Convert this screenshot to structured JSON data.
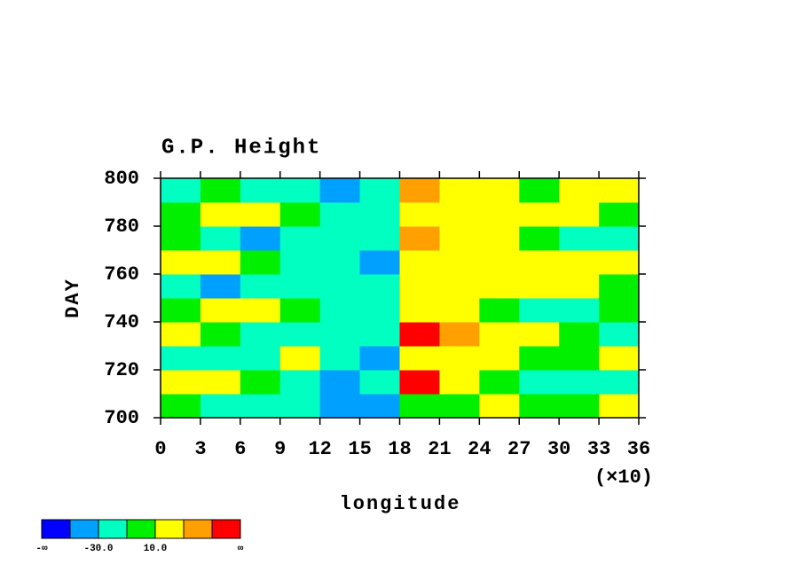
{
  "chart_data": {
    "type": "contour",
    "title": "G.P. Height",
    "x_label": "longitude",
    "x_scale_label": "(×10)",
    "y_label": "DAY",
    "xlim": [
      0,
      360
    ],
    "ylim": [
      700,
      800
    ],
    "xticks": [
      0,
      {
        "value": 30,
        "label": "3"
      },
      {
        "value": 60,
        "label": "6"
      },
      {
        "value": 90,
        "label": "9"
      },
      {
        "value": 120,
        "label": "12"
      },
      {
        "value": 150,
        "label": "15"
      },
      {
        "value": 180,
        "label": "18"
      },
      {
        "value": 210,
        "label": "21"
      },
      {
        "value": 240,
        "label": "24"
      },
      {
        "value": 270,
        "label": "27"
      },
      {
        "value": 300,
        "label": "30"
      },
      {
        "value": 330,
        "label": "33"
      },
      {
        "value": 360,
        "label": "36"
      }
    ],
    "yticks": [
      700,
      720,
      740,
      760,
      780,
      800
    ],
    "x": [
      15,
      45,
      75,
      105,
      135,
      165,
      195,
      225,
      255,
      285,
      315,
      345
    ],
    "y": [
      705,
      715,
      725,
      735,
      745,
      755,
      765,
      775,
      785,
      795
    ],
    "z": [
      [
        0,
        -20,
        -20,
        -15,
        -35,
        -40,
        5,
        5,
        15,
        5,
        0,
        15
      ],
      [
        15,
        15,
        -5,
        -20,
        -40,
        -20,
        55,
        15,
        0,
        -20,
        -20,
        -15
      ],
      [
        -20,
        -20,
        -15,
        15,
        -15,
        -35,
        15,
        20,
        15,
        0,
        0,
        15
      ],
      [
        15,
        -5,
        -20,
        -20,
        -15,
        -25,
        55,
        35,
        20,
        15,
        0,
        -15
      ],
      [
        -10,
        15,
        15,
        0,
        -20,
        -20,
        20,
        15,
        0,
        -20,
        -15,
        0
      ],
      [
        -30,
        -35,
        -30,
        -20,
        -20,
        -20,
        20,
        20,
        20,
        15,
        15,
        0
      ],
      [
        15,
        15,
        -5,
        -15,
        -25,
        -35,
        20,
        20,
        15,
        20,
        15,
        15
      ],
      [
        0,
        -20,
        -35,
        -20,
        -15,
        -20,
        35,
        20,
        15,
        0,
        -15,
        -15
      ],
      [
        5,
        15,
        15,
        0,
        -20,
        -15,
        15,
        20,
        20,
        15,
        15,
        5
      ],
      [
        -15,
        0,
        -20,
        -25,
        -35,
        -25,
        30,
        15,
        15,
        5,
        20,
        15
      ]
    ],
    "colorbar": {
      "levels": [
        -50,
        -30,
        -10,
        10,
        30,
        50
      ],
      "colors": [
        "#0000ff",
        "#00a0ff",
        "#00ffc0",
        "#00f000",
        "#ffff00",
        "#ffa000",
        "#ff0000"
      ],
      "labels": [
        "-∞",
        {
          "value": -30,
          "label": "-30.0"
        },
        {
          "value": 10,
          "label": "10.0"
        },
        "∞"
      ]
    }
  }
}
